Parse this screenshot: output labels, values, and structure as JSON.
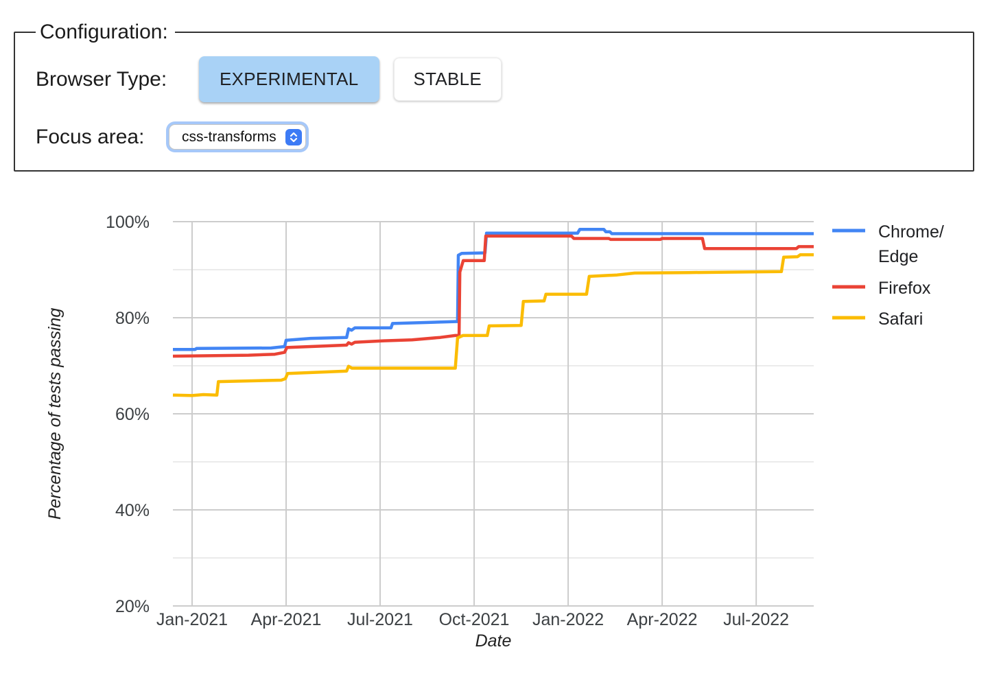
{
  "config": {
    "legend": "Configuration:",
    "browser_type_label": "Browser Type:",
    "browser_type_options": [
      "EXPERIMENTAL",
      "STABLE"
    ],
    "selected_browser_type": "EXPERIMENTAL",
    "focus_area_label": "Focus area:",
    "focus_area_value": "css-transforms"
  },
  "colors": {
    "chrome_edge": "#4285F4",
    "firefox": "#EA4335",
    "safari": "#FBBC04",
    "selected_button_bg": "#A9D2F6",
    "select_accent": "#3D7BF5",
    "grid_major": "#CCCCCC",
    "grid_minor": "#EBEBEB",
    "tick_text": "#3C4043",
    "axis_title_text": "#222222",
    "legend_text": "#202124"
  },
  "chart_data": {
    "type": "line",
    "title": "",
    "xlabel": "Date",
    "ylabel": "Percentage of tests passing",
    "x_unit": "decimal_year",
    "xlim": [
      2020.949,
      2022.653
    ],
    "ylim": [
      20,
      100
    ],
    "grid": true,
    "legend_position": "right",
    "y_ticks": [
      {
        "v": 100,
        "label": "100%"
      },
      {
        "v": 80,
        "label": "80%"
      },
      {
        "v": 60,
        "label": "60%"
      },
      {
        "v": 40,
        "label": "40%"
      },
      {
        "v": 20,
        "label": "20%"
      }
    ],
    "y_minor_gridlines": [
      90,
      70,
      50,
      30
    ],
    "x_ticks": [
      {
        "v": 2021.0,
        "label": "Jan-2021"
      },
      {
        "v": 2021.25,
        "label": "Apr-2021"
      },
      {
        "v": 2021.5,
        "label": "Jul-2021"
      },
      {
        "v": 2021.75,
        "label": "Oct-2021"
      },
      {
        "v": 2022.0,
        "label": "Jan-2022"
      },
      {
        "v": 2022.25,
        "label": "Apr-2022"
      },
      {
        "v": 2022.5,
        "label": "Jul-2022"
      }
    ],
    "series": [
      {
        "name": "Chrome/Edge",
        "legend_lines": [
          "Chrome/",
          "Edge"
        ],
        "color_key": "chrome_edge",
        "points": [
          [
            2020.949,
            73.4
          ],
          [
            2021.008,
            73.4
          ],
          [
            2021.012,
            73.6
          ],
          [
            2021.21,
            73.7
          ],
          [
            2021.246,
            74.0
          ],
          [
            2021.25,
            75.3
          ],
          [
            2021.315,
            75.7
          ],
          [
            2021.411,
            75.9
          ],
          [
            2021.416,
            77.7
          ],
          [
            2021.424,
            77.4
          ],
          [
            2021.433,
            77.9
          ],
          [
            2021.529,
            77.9
          ],
          [
            2021.533,
            78.8
          ],
          [
            2021.62,
            79.0
          ],
          [
            2021.7,
            79.2
          ],
          [
            2021.706,
            79.2
          ],
          [
            2021.708,
            93.0
          ],
          [
            2021.717,
            93.4
          ],
          [
            2021.779,
            93.5
          ],
          [
            2021.783,
            97.6
          ],
          [
            2022.025,
            97.6
          ],
          [
            2022.031,
            98.4
          ],
          [
            2022.095,
            98.4
          ],
          [
            2022.1,
            97.9
          ],
          [
            2022.111,
            97.9
          ],
          [
            2022.116,
            97.5
          ],
          [
            2022.653,
            97.5
          ]
        ]
      },
      {
        "name": "Firefox",
        "legend_lines": [
          "Firefox"
        ],
        "color_key": "firefox",
        "points": [
          [
            2020.949,
            72.0
          ],
          [
            2021.15,
            72.2
          ],
          [
            2021.22,
            72.4
          ],
          [
            2021.246,
            72.8
          ],
          [
            2021.252,
            73.8
          ],
          [
            2021.35,
            74.1
          ],
          [
            2021.411,
            74.3
          ],
          [
            2021.416,
            74.8
          ],
          [
            2021.424,
            74.5
          ],
          [
            2021.433,
            74.9
          ],
          [
            2021.51,
            75.2
          ],
          [
            2021.585,
            75.4
          ],
          [
            2021.66,
            75.9
          ],
          [
            2021.7,
            76.3
          ],
          [
            2021.71,
            76.3
          ],
          [
            2021.712,
            89.5
          ],
          [
            2021.721,
            91.9
          ],
          [
            2021.777,
            91.9
          ],
          [
            2021.781,
            97.0
          ],
          [
            2022.009,
            97.0
          ],
          [
            2022.015,
            96.5
          ],
          [
            2022.108,
            96.5
          ],
          [
            2022.113,
            96.3
          ],
          [
            2022.245,
            96.3
          ],
          [
            2022.25,
            96.5
          ],
          [
            2022.357,
            96.5
          ],
          [
            2022.363,
            94.4
          ],
          [
            2022.607,
            94.4
          ],
          [
            2022.613,
            94.8
          ],
          [
            2022.653,
            94.8
          ]
        ]
      },
      {
        "name": "Safari",
        "legend_lines": [
          "Safari"
        ],
        "color_key": "safari",
        "points": [
          [
            2020.949,
            63.9
          ],
          [
            2021.0,
            63.8
          ],
          [
            2021.03,
            64.0
          ],
          [
            2021.066,
            63.9
          ],
          [
            2021.07,
            66.7
          ],
          [
            2021.237,
            67.0
          ],
          [
            2021.248,
            67.3
          ],
          [
            2021.254,
            68.4
          ],
          [
            2021.35,
            68.7
          ],
          [
            2021.411,
            68.9
          ],
          [
            2021.416,
            69.9
          ],
          [
            2021.425,
            69.5
          ],
          [
            2021.7,
            69.5
          ],
          [
            2021.706,
            75.8
          ],
          [
            2021.72,
            76.3
          ],
          [
            2021.785,
            76.3
          ],
          [
            2021.79,
            78.3
          ],
          [
            2021.875,
            78.4
          ],
          [
            2021.881,
            83.4
          ],
          [
            2021.936,
            83.5
          ],
          [
            2021.941,
            84.9
          ],
          [
            2022.049,
            84.9
          ],
          [
            2022.056,
            88.6
          ],
          [
            2022.13,
            88.9
          ],
          [
            2022.177,
            89.3
          ],
          [
            2022.32,
            89.4
          ],
          [
            2022.567,
            89.6
          ],
          [
            2022.573,
            92.6
          ],
          [
            2022.61,
            92.7
          ],
          [
            2022.617,
            93.1
          ],
          [
            2022.653,
            93.1
          ]
        ]
      }
    ]
  }
}
